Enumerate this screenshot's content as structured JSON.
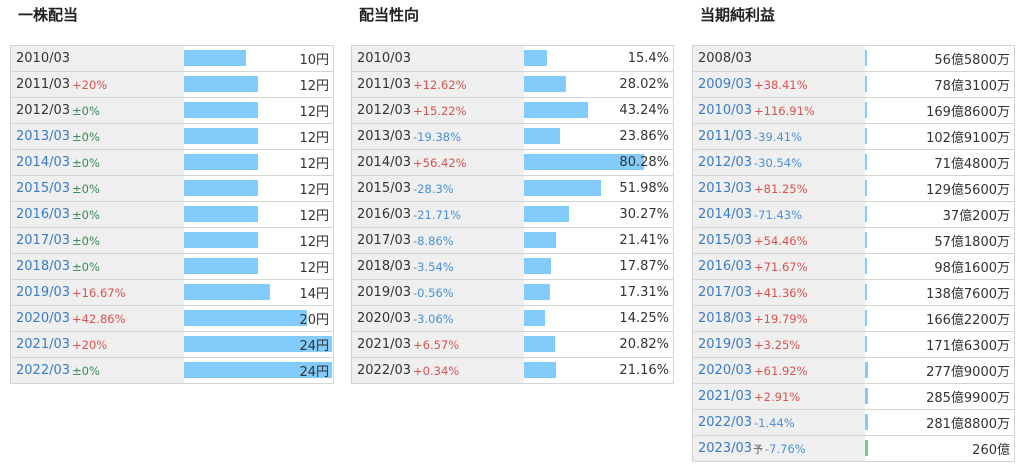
{
  "dividend": {
    "title": "一株配当",
    "rows": [
      {
        "year": "2010/03",
        "change": "",
        "value": "10円",
        "bar": 10,
        "year_style": "plain"
      },
      {
        "year": "2011/03",
        "change": "+20%",
        "value": "12円",
        "bar": 12,
        "year_style": "plain"
      },
      {
        "year": "2012/03",
        "change": "±0%",
        "value": "12円",
        "bar": 12,
        "year_style": "plain"
      },
      {
        "year": "2013/03",
        "change": "±0%",
        "value": "12円",
        "bar": 12,
        "year_style": "link"
      },
      {
        "year": "2014/03",
        "change": "±0%",
        "value": "12円",
        "bar": 12,
        "year_style": "link"
      },
      {
        "year": "2015/03",
        "change": "±0%",
        "value": "12円",
        "bar": 12,
        "year_style": "link"
      },
      {
        "year": "2016/03",
        "change": "±0%",
        "value": "12円",
        "bar": 12,
        "year_style": "link"
      },
      {
        "year": "2017/03",
        "change": "±0%",
        "value": "12円",
        "bar": 12,
        "year_style": "link"
      },
      {
        "year": "2018/03",
        "change": "±0%",
        "value": "12円",
        "bar": 12,
        "year_style": "link"
      },
      {
        "year": "2019/03",
        "change": "+16.67%",
        "value": "14円",
        "bar": 14,
        "year_style": "link"
      },
      {
        "year": "2020/03",
        "change": "+42.86%",
        "value": "20円",
        "bar": 20,
        "year_style": "link"
      },
      {
        "year": "2021/03",
        "change": "+20%",
        "value": "24円",
        "bar": 24,
        "year_style": "link"
      },
      {
        "year": "2022/03",
        "change": "±0%",
        "value": "24円",
        "bar": 24,
        "year_style": "link"
      }
    ]
  },
  "payout": {
    "title": "配当性向",
    "rows": [
      {
        "year": "2010/03",
        "change": "",
        "value": "15.4%",
        "bar": 15.4,
        "year_style": "plain"
      },
      {
        "year": "2011/03",
        "change": "+12.62%",
        "value": "28.02%",
        "bar": 28.02,
        "year_style": "plain"
      },
      {
        "year": "2012/03",
        "change": "+15.22%",
        "value": "43.24%",
        "bar": 43.24,
        "year_style": "plain"
      },
      {
        "year": "2013/03",
        "change": "-19.38%",
        "value": "23.86%",
        "bar": 23.86,
        "year_style": "plain"
      },
      {
        "year": "2014/03",
        "change": "+56.42%",
        "value": "80.28%",
        "bar": 80.28,
        "year_style": "plain"
      },
      {
        "year": "2015/03",
        "change": "-28.3%",
        "value": "51.98%",
        "bar": 51.98,
        "year_style": "plain"
      },
      {
        "year": "2016/03",
        "change": "-21.71%",
        "value": "30.27%",
        "bar": 30.27,
        "year_style": "plain"
      },
      {
        "year": "2017/03",
        "change": "-8.86%",
        "value": "21.41%",
        "bar": 21.41,
        "year_style": "plain"
      },
      {
        "year": "2018/03",
        "change": "-3.54%",
        "value": "17.87%",
        "bar": 17.87,
        "year_style": "plain"
      },
      {
        "year": "2019/03",
        "change": "-0.56%",
        "value": "17.31%",
        "bar": 17.31,
        "year_style": "plain"
      },
      {
        "year": "2020/03",
        "change": "-3.06%",
        "value": "14.25%",
        "bar": 14.25,
        "year_style": "plain"
      },
      {
        "year": "2021/03",
        "change": "+6.57%",
        "value": "20.82%",
        "bar": 20.82,
        "year_style": "plain"
      },
      {
        "year": "2022/03",
        "change": "+0.34%",
        "value": "21.16%",
        "bar": 21.16,
        "year_style": "plain"
      }
    ]
  },
  "net_income": {
    "title": "当期純利益",
    "rows": [
      {
        "year": "2008/03",
        "change": "",
        "value": "56億5800万",
        "bar": 56.58,
        "year_style": "plain",
        "forecast": ""
      },
      {
        "year": "2009/03",
        "change": "+38.41%",
        "value": "78億3100万",
        "bar": 78.31,
        "year_style": "link",
        "forecast": ""
      },
      {
        "year": "2010/03",
        "change": "+116.91%",
        "value": "169億8600万",
        "bar": 169.86,
        "year_style": "link",
        "forecast": ""
      },
      {
        "year": "2011/03",
        "change": "-39.41%",
        "value": "102億9100万",
        "bar": 102.91,
        "year_style": "link",
        "forecast": ""
      },
      {
        "year": "2012/03",
        "change": "-30.54%",
        "value": "71億4800万",
        "bar": 71.48,
        "year_style": "link",
        "forecast": ""
      },
      {
        "year": "2013/03",
        "change": "+81.25%",
        "value": "129億5600万",
        "bar": 129.56,
        "year_style": "link",
        "forecast": ""
      },
      {
        "year": "2014/03",
        "change": "-71.43%",
        "value": "37億200万",
        "bar": 37.02,
        "year_style": "link",
        "forecast": ""
      },
      {
        "year": "2015/03",
        "change": "+54.46%",
        "value": "57億1800万",
        "bar": 57.18,
        "year_style": "link",
        "forecast": ""
      },
      {
        "year": "2016/03",
        "change": "+71.67%",
        "value": "98億1600万",
        "bar": 98.16,
        "year_style": "link",
        "forecast": ""
      },
      {
        "year": "2017/03",
        "change": "+41.36%",
        "value": "138億7600万",
        "bar": 138.76,
        "year_style": "link",
        "forecast": ""
      },
      {
        "year": "2018/03",
        "change": "+19.79%",
        "value": "166億2200万",
        "bar": 166.22,
        "year_style": "link",
        "forecast": ""
      },
      {
        "year": "2019/03",
        "change": "+3.25%",
        "value": "171億6300万",
        "bar": 171.63,
        "year_style": "link",
        "forecast": ""
      },
      {
        "year": "2020/03",
        "change": "+61.92%",
        "value": "277億9000万",
        "bar": 277.9,
        "year_style": "link",
        "forecast": ""
      },
      {
        "year": "2021/03",
        "change": "+2.91%",
        "value": "285億9900万",
        "bar": 285.99,
        "year_style": "link",
        "forecast": ""
      },
      {
        "year": "2022/03",
        "change": "-1.44%",
        "value": "281億8800万",
        "bar": 281.88,
        "year_style": "link",
        "forecast": ""
      },
      {
        "year": "2023/03",
        "change": "-7.76%",
        "value": "260億",
        "bar": 260,
        "year_style": "link",
        "forecast": "予"
      }
    ]
  }
}
